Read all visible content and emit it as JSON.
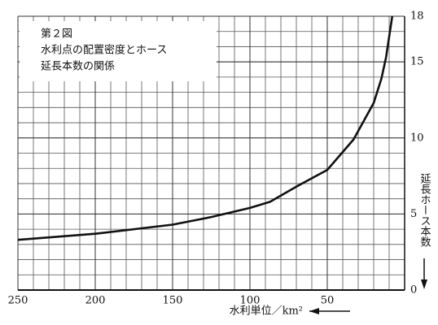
{
  "chart_data": {
    "type": "line",
    "title": [
      "第２図",
      "水利点の配置密度とホース",
      "延長本数の関係"
    ],
    "x_label": "水利単位／km²",
    "y_label": "延長ホース本数",
    "x": [
      250,
      200,
      150,
      125,
      100,
      87,
      70,
      50,
      33,
      20,
      15,
      12,
      8
    ],
    "series": [
      {
        "color": "#111111",
        "values": [
          3.3,
          3.7,
          4.3,
          4.8,
          5.4,
          5.8,
          6.8,
          7.9,
          9.9,
          12.3,
          13.9,
          15.3,
          18
        ]
      }
    ],
    "xlim": [
      250,
      0
    ],
    "xticks": [
      250,
      200,
      150,
      100,
      50
    ],
    "ylim": [
      0,
      18
    ],
    "yticks": [
      0,
      5,
      10,
      15,
      18
    ],
    "grid": true
  }
}
